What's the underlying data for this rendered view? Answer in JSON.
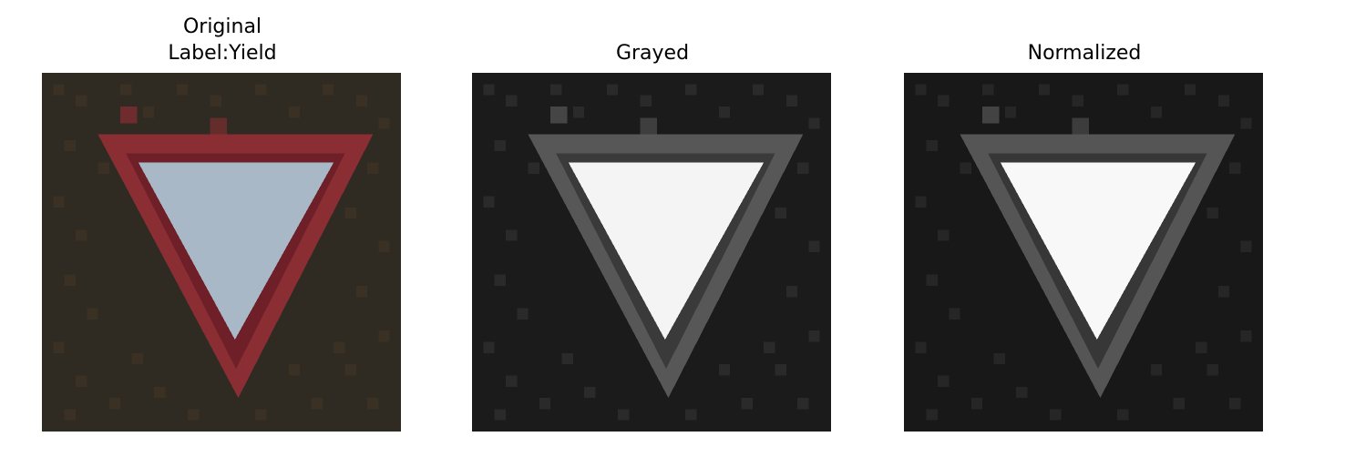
{
  "panels": [
    {
      "title_lines": [
        "Original",
        "Label:Yield"
      ],
      "image": "yield-sign-color",
      "colors": {
        "background": "#2f2a22",
        "background_mottle": "#3a3023",
        "border": "#8a2e33",
        "border_inner": "#6e1f27",
        "fill": "#a9b8c6"
      }
    },
    {
      "title_lines": [
        "Grayed"
      ],
      "image": "yield-sign-grayscale",
      "colors": {
        "background": "#1b1b1b",
        "background_mottle": "#2a2a2a",
        "border": "#575757",
        "border_inner": "#3a3a3a",
        "fill": "#f4f4f4"
      }
    },
    {
      "title_lines": [
        "Normalized"
      ],
      "image": "yield-sign-normalized",
      "colors": {
        "background": "#181818",
        "background_mottle": "#262626",
        "border": "#555555",
        "border_inner": "#373737",
        "fill": "#f8f8f8"
      }
    }
  ]
}
